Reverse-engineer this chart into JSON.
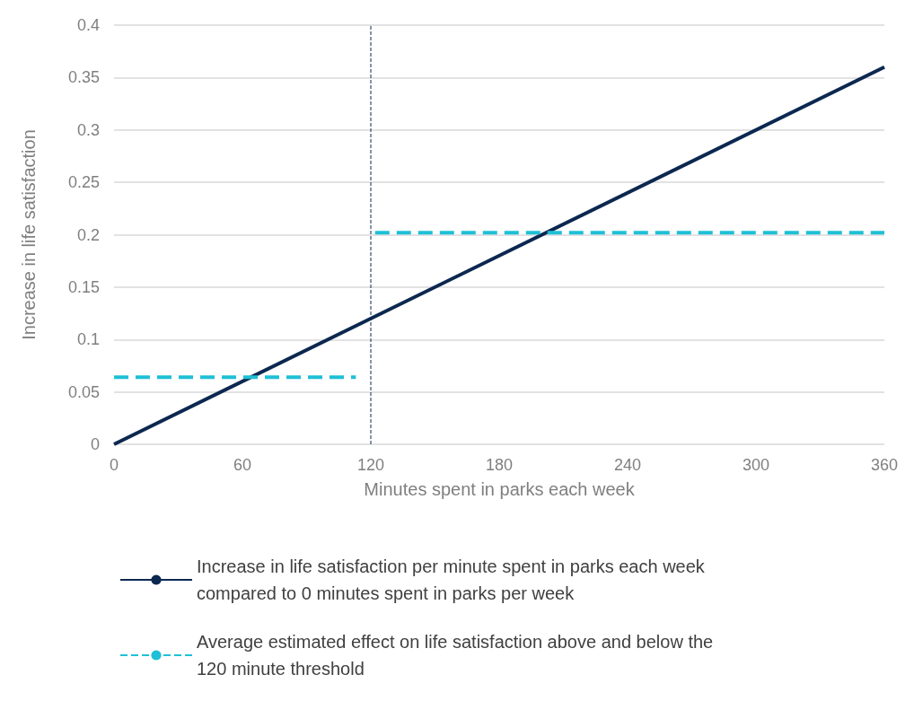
{
  "chart_data": {
    "type": "line",
    "xlabel": "Minutes spent in parks each week",
    "ylabel": "Increase in life satisfaction",
    "xlim": [
      0,
      360
    ],
    "xticks": [
      0,
      60,
      120,
      180,
      240,
      300,
      360
    ],
    "ylim": [
      0,
      0.4
    ],
    "yticks": [
      0,
      0.05,
      0.1,
      0.15,
      0.2,
      0.25,
      0.3,
      0.35,
      0.4
    ],
    "grid": "y",
    "legend": "bottom",
    "marker": "none",
    "series": [
      {
        "name": "Increase in life satisfaction per minute spent in parks each week compared to 0 minutes spent in parks per week",
        "color": "#0c2850",
        "line_style": "solid",
        "x": [
          0,
          360
        ],
        "values": [
          0,
          0.36
        ]
      },
      {
        "name": "Average estimated effect on life satisfaction above and below the 120 minute threshold",
        "color": "#1ec0d6",
        "line_style": "dashed",
        "x": [
          0,
          113,
          120,
          122,
          360
        ],
        "values": [
          0.064,
          0.064,
          null,
          0.202,
          0.202
        ]
      }
    ],
    "ref_lines": [
      {
        "axis": "x",
        "value": 120,
        "color": "#0c2850",
        "line_style": "dashed"
      }
    ]
  }
}
